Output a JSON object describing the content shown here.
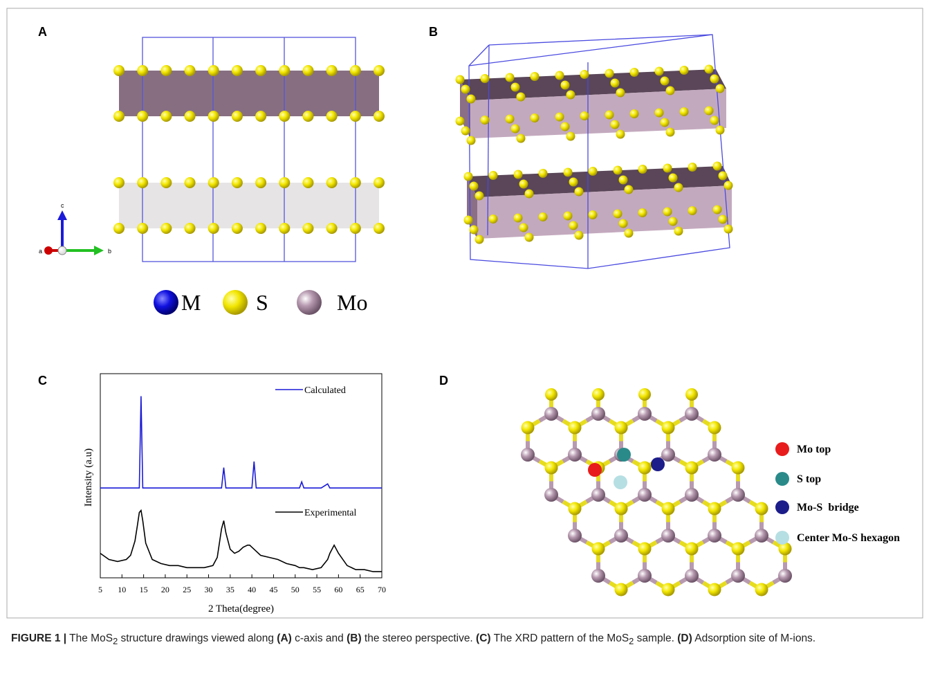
{
  "panel_labels": [
    "A",
    "B",
    "C",
    "D"
  ],
  "panel_a": {
    "axes": [
      "c",
      "a",
      "b"
    ],
    "legend": [
      "M",
      "S",
      "Mo"
    ]
  },
  "chart_data": {
    "type": "line",
    "xlabel": "2 Theta(degree)",
    "ylabel": "Intensity (a.u)",
    "x": [
      5,
      7,
      9,
      11,
      12,
      13,
      13.6,
      14,
      14.4,
      14.8,
      15.5,
      17,
      19,
      21,
      23,
      25,
      27,
      29,
      31,
      32,
      33,
      33.5,
      34,
      35,
      36,
      37,
      38,
      39,
      39.5,
      40,
      40.5,
      41,
      42,
      44,
      46,
      48,
      50,
      51,
      51.5,
      52,
      54,
      56,
      57.5,
      58,
      59,
      60,
      62,
      64,
      66,
      68,
      70
    ],
    "series": [
      {
        "name": "Calculated",
        "color": "#1a1ad8",
        "values": [
          44,
          44,
          44,
          44,
          44,
          44,
          44,
          44,
          89,
          44,
          44,
          44,
          44,
          44,
          44,
          44,
          44,
          44,
          44,
          44,
          44,
          54,
          44,
          44,
          44,
          44,
          44,
          44,
          44,
          44,
          57,
          44,
          44,
          44,
          44,
          44,
          44,
          44,
          47,
          44,
          44,
          44,
          46,
          44,
          44,
          44,
          44,
          44,
          44,
          44,
          44
        ]
      },
      {
        "name": "Experimental",
        "color": "#000000",
        "values": [
          12,
          9,
          8,
          9,
          11,
          18,
          26,
          32,
          33,
          28,
          17,
          9,
          7,
          6,
          6,
          5,
          5,
          5,
          6,
          10,
          24,
          28,
          22,
          14,
          12,
          13,
          15,
          16,
          16,
          15,
          14,
          13,
          11,
          10,
          9,
          7,
          6,
          5,
          5,
          5,
          4,
          5,
          9,
          12,
          16,
          12,
          6,
          4,
          4,
          3,
          3
        ]
      }
    ],
    "xlim": [
      5,
      70
    ],
    "xticks": [
      5,
      10,
      15,
      20,
      25,
      30,
      35,
      40,
      45,
      50,
      55,
      60,
      65,
      70
    ],
    "ylim": [
      0,
      100
    ]
  },
  "panel_d": {
    "legend": [
      "Mo top",
      "S top",
      "Mo-S  bridge",
      "Center Mo-S hexagon"
    ]
  },
  "caption": [
    "FIGURE 1 |",
    " The MoS",
    "2",
    " structure drawings viewed along ",
    "(A)",
    " c-axis and ",
    "(B)",
    " the stereo perspective. ",
    "(C)",
    " The XRD pattern of the MoS",
    "2",
    " sample. ",
    "(D)",
    " Adsorption site of M-ions."
  ]
}
